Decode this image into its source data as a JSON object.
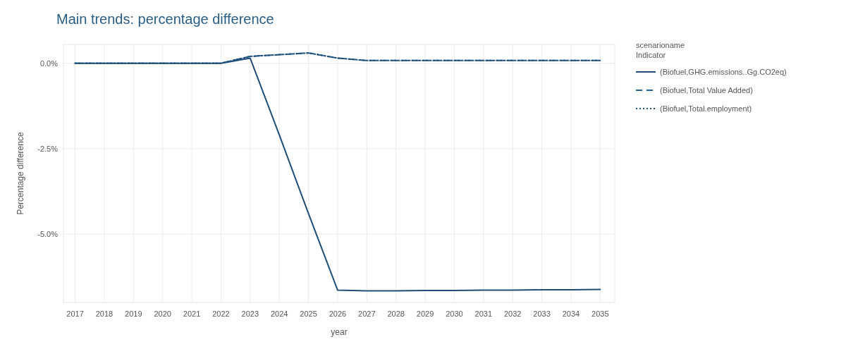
{
  "chart_data": {
    "type": "line",
    "title": "Main trends: percentage difference",
    "xlabel": "year",
    "ylabel": "Percentage difference",
    "legend_title": "scenarioname\nIndicator",
    "x": [
      2017,
      2018,
      2019,
      2020,
      2021,
      2022,
      2023,
      2024,
      2025,
      2026,
      2027,
      2028,
      2029,
      2030,
      2031,
      2032,
      2033,
      2034,
      2035
    ],
    "xlim": [
      2016.6,
      2035.5
    ],
    "xticks": [
      2017,
      2018,
      2019,
      2020,
      2021,
      2022,
      2023,
      2024,
      2025,
      2026,
      2027,
      2028,
      2029,
      2030,
      2031,
      2032,
      2033,
      2034,
      2035
    ],
    "ylim": [
      -7.0,
      0.55
    ],
    "yticks": [
      {
        "value": 0,
        "label": "0.0%"
      },
      {
        "value": -2.5,
        "label": "-2.5%"
      },
      {
        "value": -5,
        "label": "-5.0%"
      }
    ],
    "grid": true,
    "legend": "right",
    "series": [
      {
        "name": "(Biofuel,GHG.emissions..Gg.CO2eq)",
        "color": "#1f4e79",
        "line_style": "solid",
        "values": [
          0,
          0,
          0,
          0,
          0,
          0,
          0.15,
          -2.1,
          -4.4,
          -6.64,
          -6.66,
          -6.66,
          -6.65,
          -6.65,
          -6.64,
          -6.64,
          -6.63,
          -6.63,
          -6.62
        ]
      },
      {
        "name": "(Biofuel,Total Value Added)",
        "color": "#24618f",
        "line_style": "dashed",
        "values": [
          0,
          0,
          0,
          0,
          0,
          0,
          0.2,
          0.25,
          0.3,
          0.15,
          0.08,
          0.08,
          0.08,
          0.08,
          0.08,
          0.08,
          0.08,
          0.08,
          0.08
        ]
      },
      {
        "name": "(Biofuel,Total.employment)",
        "color": "#1f4e79",
        "line_style": "dotted",
        "values": [
          0,
          0,
          0,
          0,
          0,
          0,
          0.2,
          0.25,
          0.3,
          0.15,
          0.08,
          0.08,
          0.08,
          0.08,
          0.08,
          0.08,
          0.08,
          0.08,
          0.08
        ]
      }
    ]
  }
}
